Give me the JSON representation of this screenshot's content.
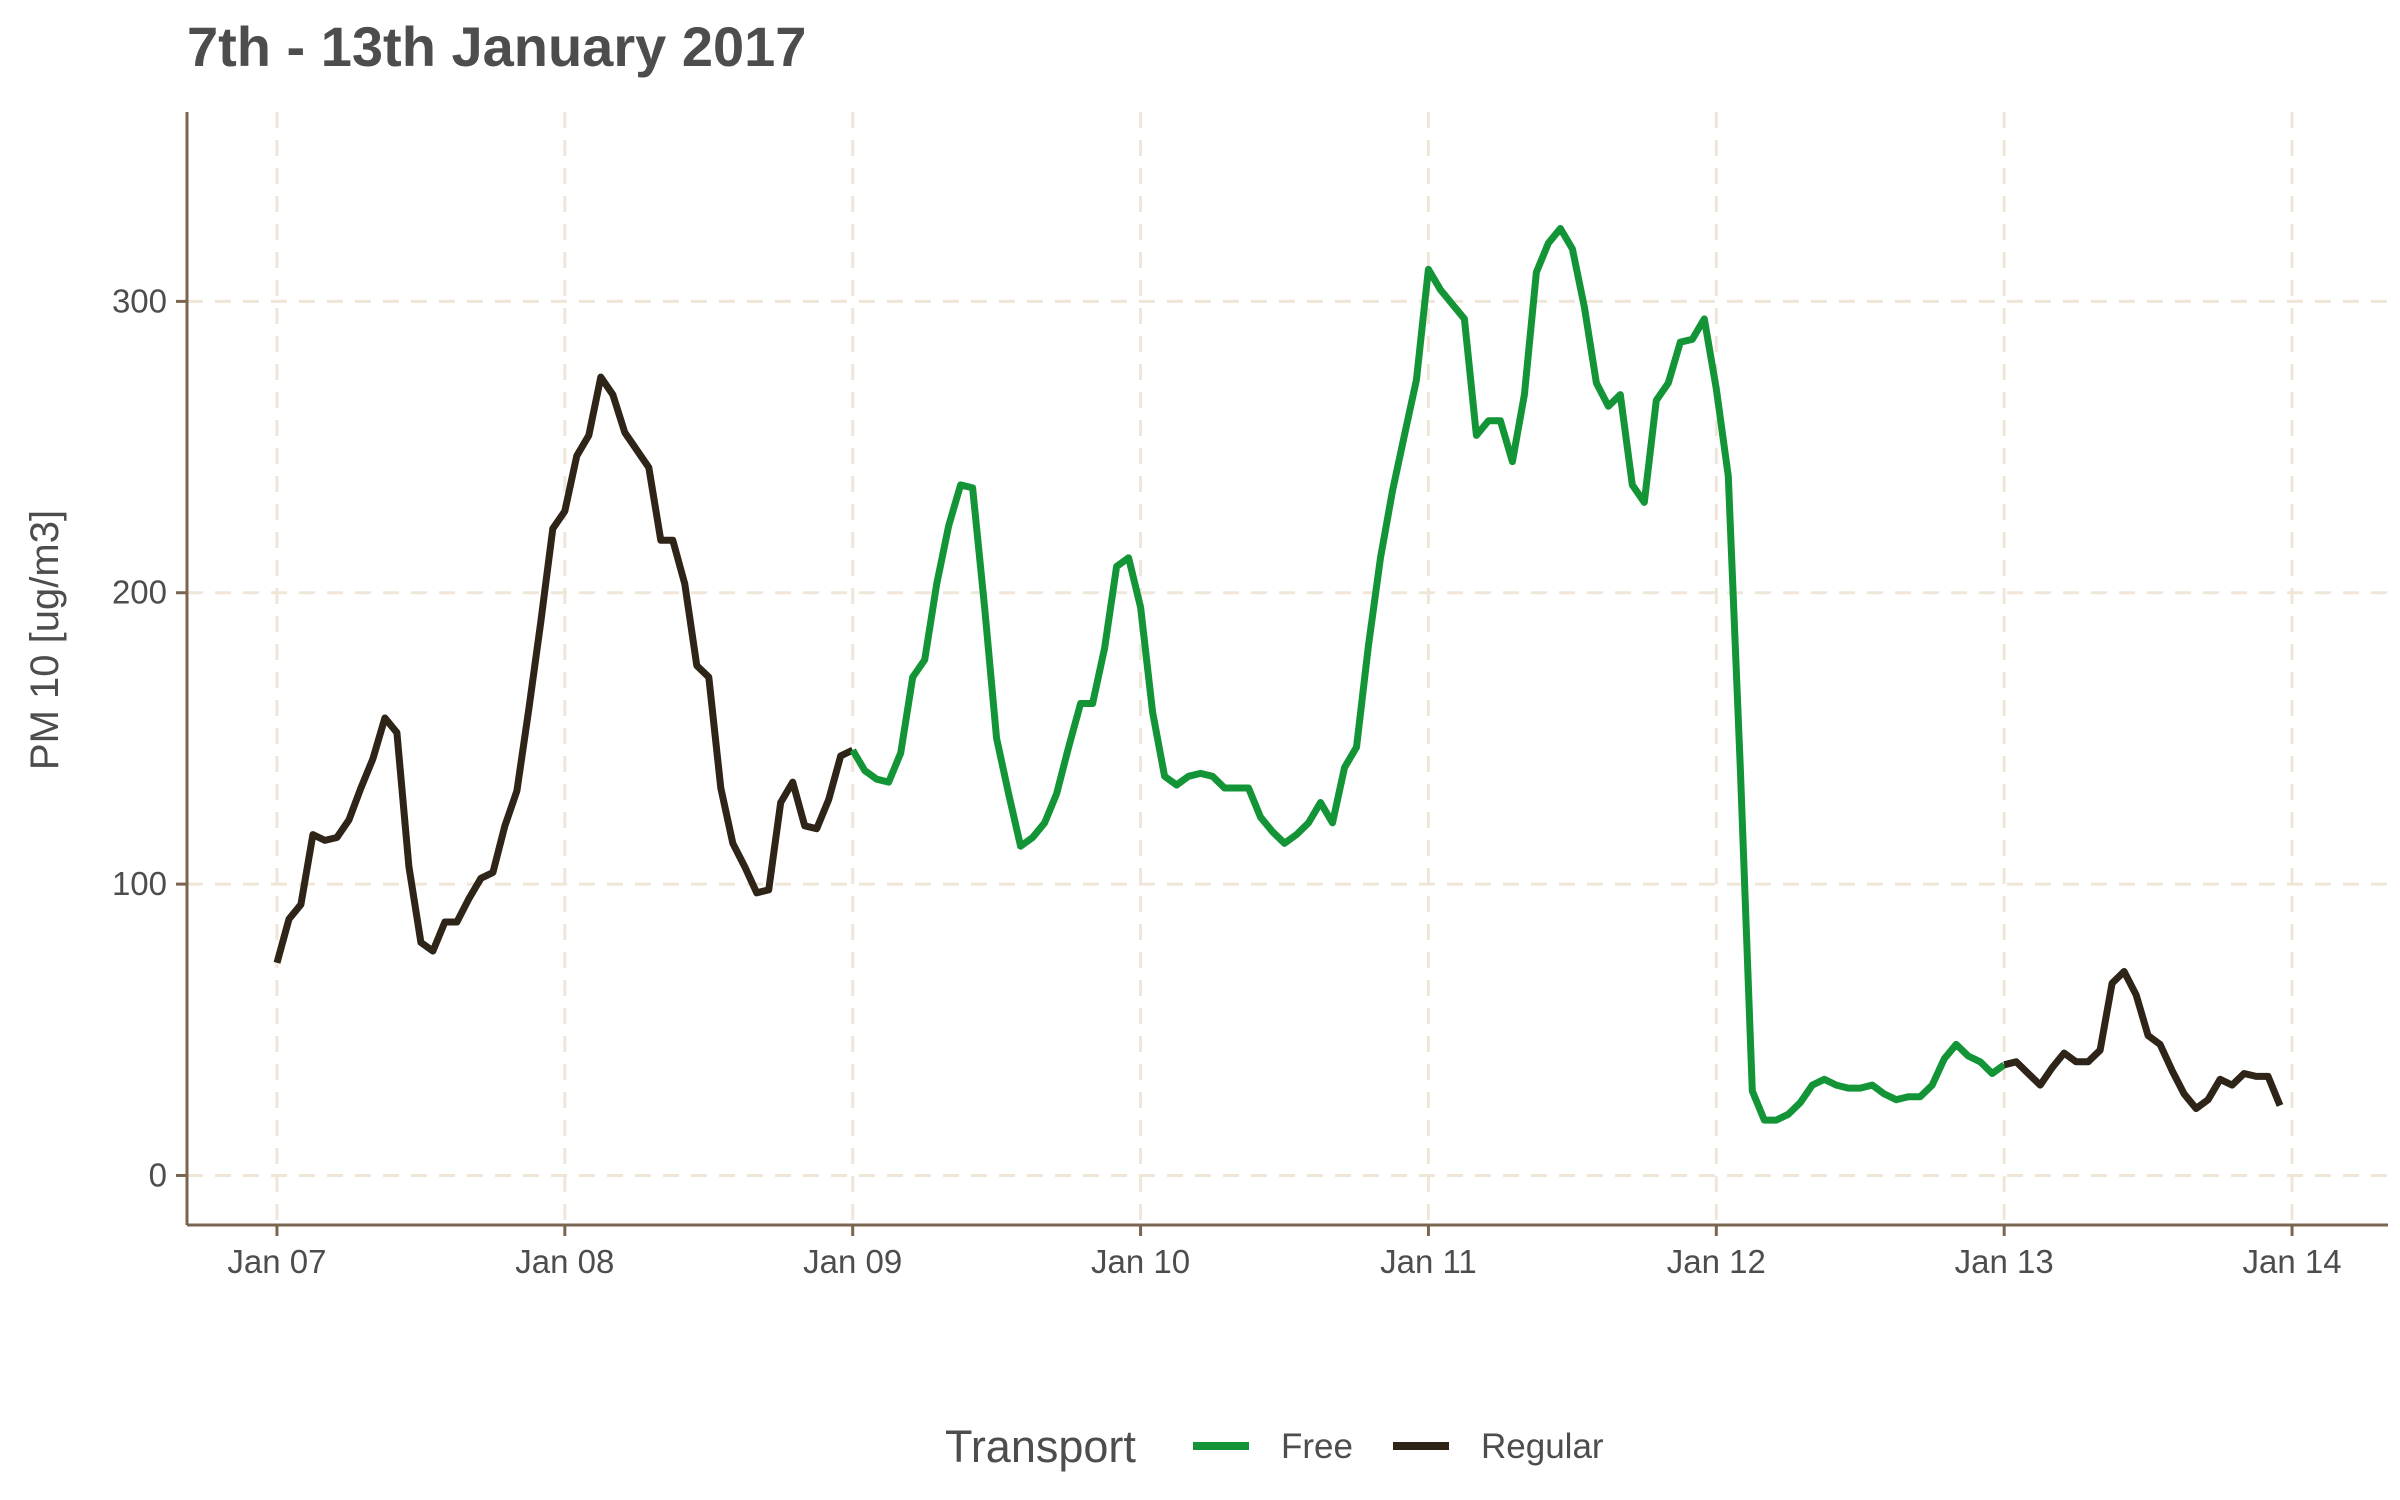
{
  "chart_data": {
    "type": "line",
    "title": "7th - 13th January 2017",
    "xlabel": "",
    "ylabel": "PM 10 [ug/m3]",
    "xlim": [
      "2017-01-06 16:30",
      "2017-01-14 08:00"
    ],
    "ylim": [
      -17,
      365
    ],
    "x_ticks": [
      "Jan 07",
      "Jan 08",
      "Jan 09",
      "Jan 10",
      "Jan 11",
      "Jan 12",
      "Jan 13",
      "Jan 14"
    ],
    "y_ticks": [
      0,
      100,
      200,
      300
    ],
    "grid": true,
    "legend": {
      "title": "Transport",
      "position": "bottom"
    },
    "series": [
      {
        "name": "Regular",
        "color": "#2e2418",
        "points": [
          [
            "2017-01-07 00:00",
            73
          ],
          [
            "2017-01-07 01:00",
            88
          ],
          [
            "2017-01-07 02:00",
            93
          ],
          [
            "2017-01-07 03:00",
            117
          ],
          [
            "2017-01-07 04:00",
            115
          ],
          [
            "2017-01-07 05:00",
            116
          ],
          [
            "2017-01-07 06:00",
            122
          ],
          [
            "2017-01-07 07:00",
            133
          ],
          [
            "2017-01-07 08:00",
            143
          ],
          [
            "2017-01-07 09:00",
            157
          ],
          [
            "2017-01-07 10:00",
            152
          ],
          [
            "2017-01-07 11:00",
            106
          ],
          [
            "2017-01-07 12:00",
            80
          ],
          [
            "2017-01-07 13:00",
            77
          ],
          [
            "2017-01-07 14:00",
            87
          ],
          [
            "2017-01-07 15:00",
            87
          ],
          [
            "2017-01-07 16:00",
            95
          ],
          [
            "2017-01-07 17:00",
            102
          ],
          [
            "2017-01-07 18:00",
            104
          ],
          [
            "2017-01-07 19:00",
            120
          ],
          [
            "2017-01-07 20:00",
            132
          ],
          [
            "2017-01-07 21:00",
            160
          ],
          [
            "2017-01-07 22:00",
            190
          ],
          [
            "2017-01-07 23:00",
            222
          ],
          [
            "2017-01-08 00:00",
            228
          ],
          [
            "2017-01-08 01:00",
            247
          ],
          [
            "2017-01-08 02:00",
            254
          ],
          [
            "2017-01-08 03:00",
            274
          ],
          [
            "2017-01-08 04:00",
            268
          ],
          [
            "2017-01-08 05:00",
            255
          ],
          [
            "2017-01-08 06:00",
            249
          ],
          [
            "2017-01-08 07:00",
            243
          ],
          [
            "2017-01-08 08:00",
            218
          ],
          [
            "2017-01-08 09:00",
            218
          ],
          [
            "2017-01-08 10:00",
            203
          ],
          [
            "2017-01-08 11:00",
            175
          ],
          [
            "2017-01-08 12:00",
            171
          ],
          [
            "2017-01-08 13:00",
            133
          ],
          [
            "2017-01-08 14:00",
            114
          ],
          [
            "2017-01-08 15:00",
            106
          ],
          [
            "2017-01-08 16:00",
            97
          ],
          [
            "2017-01-08 17:00",
            98
          ],
          [
            "2017-01-08 18:00",
            128
          ],
          [
            "2017-01-08 19:00",
            135
          ],
          [
            "2017-01-08 20:00",
            120
          ],
          [
            "2017-01-08 21:00",
            119
          ],
          [
            "2017-01-08 22:00",
            129
          ],
          [
            "2017-01-08 23:00",
            144
          ],
          [
            "2017-01-09 00:00",
            146
          ]
        ]
      },
      {
        "name": "Free",
        "color": "#139537",
        "points": [
          [
            "2017-01-09 00:00",
            146
          ],
          [
            "2017-01-09 01:00",
            139
          ],
          [
            "2017-01-09 02:00",
            136
          ],
          [
            "2017-01-09 03:00",
            135
          ],
          [
            "2017-01-09 04:00",
            145
          ],
          [
            "2017-01-09 05:00",
            171
          ],
          [
            "2017-01-09 06:00",
            177
          ],
          [
            "2017-01-09 07:00",
            203
          ],
          [
            "2017-01-09 08:00",
            223
          ],
          [
            "2017-01-09 09:00",
            237
          ],
          [
            "2017-01-09 10:00",
            236
          ],
          [
            "2017-01-09 11:00",
            195
          ],
          [
            "2017-01-09 12:00",
            150
          ],
          [
            "2017-01-09 13:00",
            131
          ],
          [
            "2017-01-09 14:00",
            113
          ],
          [
            "2017-01-09 15:00",
            116
          ],
          [
            "2017-01-09 16:00",
            121
          ],
          [
            "2017-01-09 17:00",
            131
          ],
          [
            "2017-01-09 18:00",
            147
          ],
          [
            "2017-01-09 19:00",
            162
          ],
          [
            "2017-01-09 20:00",
            162
          ],
          [
            "2017-01-09 21:00",
            181
          ],
          [
            "2017-01-09 22:00",
            209
          ],
          [
            "2017-01-09 23:00",
            212
          ],
          [
            "2017-01-10 00:00",
            195
          ],
          [
            "2017-01-10 01:00",
            159
          ],
          [
            "2017-01-10 02:00",
            137
          ],
          [
            "2017-01-10 03:00",
            134
          ],
          [
            "2017-01-10 04:00",
            137
          ],
          [
            "2017-01-10 05:00",
            138
          ],
          [
            "2017-01-10 06:00",
            137
          ],
          [
            "2017-01-10 07:00",
            133
          ],
          [
            "2017-01-10 08:00",
            133
          ],
          [
            "2017-01-10 09:00",
            133
          ],
          [
            "2017-01-10 10:00",
            123
          ],
          [
            "2017-01-10 11:00",
            118
          ],
          [
            "2017-01-10 12:00",
            114
          ],
          [
            "2017-01-10 13:00",
            117
          ],
          [
            "2017-01-10 14:00",
            121
          ],
          [
            "2017-01-10 15:00",
            128
          ],
          [
            "2017-01-10 16:00",
            121
          ],
          [
            "2017-01-10 17:00",
            140
          ],
          [
            "2017-01-10 18:00",
            147
          ],
          [
            "2017-01-10 19:00",
            182
          ],
          [
            "2017-01-10 20:00",
            212
          ],
          [
            "2017-01-10 21:00",
            235
          ],
          [
            "2017-01-10 22:00",
            254
          ],
          [
            "2017-01-10 23:00",
            273
          ],
          [
            "2017-01-11 00:00",
            311
          ],
          [
            "2017-01-11 01:00",
            304
          ],
          [
            "2017-01-11 02:00",
            299
          ],
          [
            "2017-01-11 03:00",
            294
          ],
          [
            "2017-01-11 04:00",
            254
          ],
          [
            "2017-01-11 05:00",
            259
          ],
          [
            "2017-01-11 06:00",
            259
          ],
          [
            "2017-01-11 07:00",
            245
          ],
          [
            "2017-01-11 08:00",
            268
          ],
          [
            "2017-01-11 09:00",
            310
          ],
          [
            "2017-01-11 10:00",
            320
          ],
          [
            "2017-01-11 11:00",
            325
          ],
          [
            "2017-01-11 12:00",
            318
          ],
          [
            "2017-01-11 13:00",
            298
          ],
          [
            "2017-01-11 14:00",
            272
          ],
          [
            "2017-01-11 15:00",
            264
          ],
          [
            "2017-01-11 16:00",
            268
          ],
          [
            "2017-01-11 17:00",
            237
          ],
          [
            "2017-01-11 18:00",
            231
          ],
          [
            "2017-01-11 19:00",
            266
          ],
          [
            "2017-01-11 20:00",
            272
          ],
          [
            "2017-01-11 21:00",
            286
          ],
          [
            "2017-01-11 22:00",
            287
          ],
          [
            "2017-01-11 23:00",
            294
          ],
          [
            "2017-01-12 00:00",
            270
          ],
          [
            "2017-01-12 01:00",
            240
          ],
          [
            "2017-01-12 02:00",
            140
          ],
          [
            "2017-01-12 03:00",
            29
          ],
          [
            "2017-01-12 04:00",
            19
          ],
          [
            "2017-01-12 05:00",
            19
          ],
          [
            "2017-01-12 06:00",
            21
          ],
          [
            "2017-01-12 07:00",
            25
          ],
          [
            "2017-01-12 08:00",
            31
          ],
          [
            "2017-01-12 09:00",
            33
          ],
          [
            "2017-01-12 10:00",
            31
          ],
          [
            "2017-01-12 11:00",
            30
          ],
          [
            "2017-01-12 12:00",
            30
          ],
          [
            "2017-01-12 13:00",
            31
          ],
          [
            "2017-01-12 14:00",
            28
          ],
          [
            "2017-01-12 15:00",
            26
          ],
          [
            "2017-01-12 16:00",
            27
          ],
          [
            "2017-01-12 17:00",
            27
          ],
          [
            "2017-01-12 18:00",
            31
          ],
          [
            "2017-01-12 19:00",
            40
          ],
          [
            "2017-01-12 20:00",
            45
          ],
          [
            "2017-01-12 21:00",
            41
          ],
          [
            "2017-01-12 22:00",
            39
          ],
          [
            "2017-01-12 23:00",
            35
          ],
          [
            "2017-01-13 00:00",
            38
          ]
        ]
      },
      {
        "name": "Regular",
        "color": "#2e2418",
        "points": [
          [
            "2017-01-13 00:00",
            38
          ],
          [
            "2017-01-13 01:00",
            39
          ],
          [
            "2017-01-13 02:00",
            35
          ],
          [
            "2017-01-13 03:00",
            31
          ],
          [
            "2017-01-13 04:00",
            37
          ],
          [
            "2017-01-13 05:00",
            42
          ],
          [
            "2017-01-13 06:00",
            39
          ],
          [
            "2017-01-13 07:00",
            39
          ],
          [
            "2017-01-13 08:00",
            43
          ],
          [
            "2017-01-13 09:00",
            66
          ],
          [
            "2017-01-13 10:00",
            70
          ],
          [
            "2017-01-13 11:00",
            62
          ],
          [
            "2017-01-13 12:00",
            48
          ],
          [
            "2017-01-13 13:00",
            45
          ],
          [
            "2017-01-13 14:00",
            36
          ],
          [
            "2017-01-13 15:00",
            28
          ],
          [
            "2017-01-13 16:00",
            23
          ],
          [
            "2017-01-13 17:00",
            26
          ],
          [
            "2017-01-13 18:00",
            33
          ],
          [
            "2017-01-13 19:00",
            31
          ],
          [
            "2017-01-13 20:00",
            35
          ],
          [
            "2017-01-13 21:00",
            34
          ],
          [
            "2017-01-13 22:00",
            34
          ],
          [
            "2017-01-13 23:00",
            24
          ]
        ]
      }
    ]
  }
}
